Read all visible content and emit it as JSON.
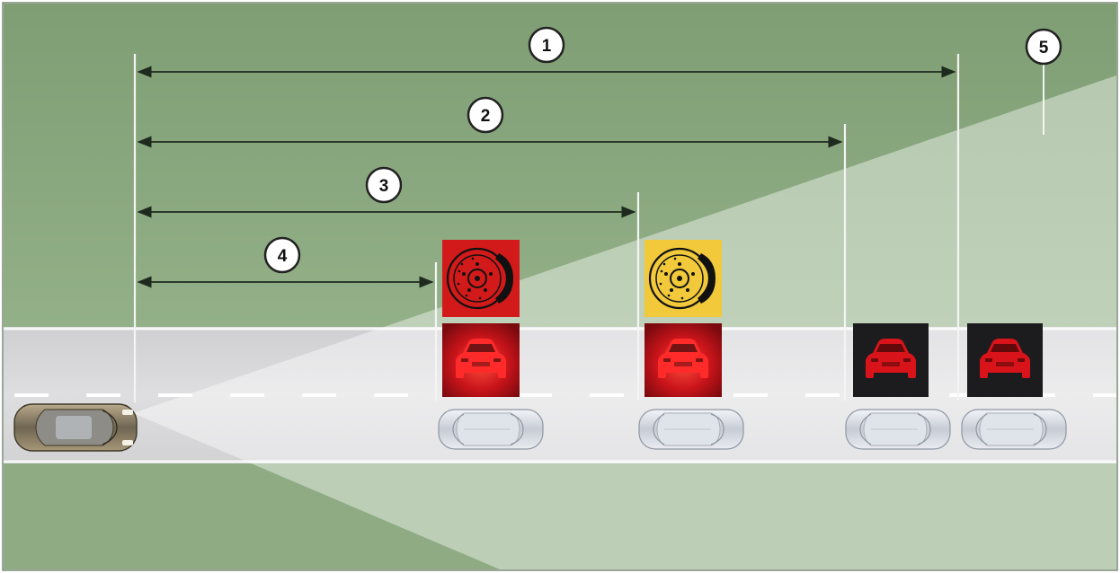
{
  "callouts": [
    {
      "number": "1"
    },
    {
      "number": "2"
    },
    {
      "number": "3"
    },
    {
      "number": "4"
    },
    {
      "number": "5"
    }
  ],
  "colors": {
    "field_dark": "#8ba87f",
    "field_light": "#c9d9bf",
    "road": "#d4d4d6",
    "road_light": "#ececed",
    "warning_red": "#d21a1a",
    "warning_yellow": "#f1c93a",
    "warning_black": "#1c1c1e",
    "dimension_line": "#1e2a1e"
  },
  "icons": {
    "brake_disc_icon": "brake-disc",
    "vehicle_ahead_icon": "car-front"
  },
  "zones": [
    {
      "callout": "4",
      "brake_icon_color": "red",
      "car_icon_style": "red-glow"
    },
    {
      "callout": "3",
      "brake_icon_color": "yellow",
      "car_icon_style": "red-glow"
    },
    {
      "callout": "2",
      "brake_icon_color": "none",
      "car_icon_style": "red-on-black"
    },
    {
      "callout": "1",
      "brake_icon_color": "none",
      "car_icon_style": "red-on-black"
    }
  ]
}
